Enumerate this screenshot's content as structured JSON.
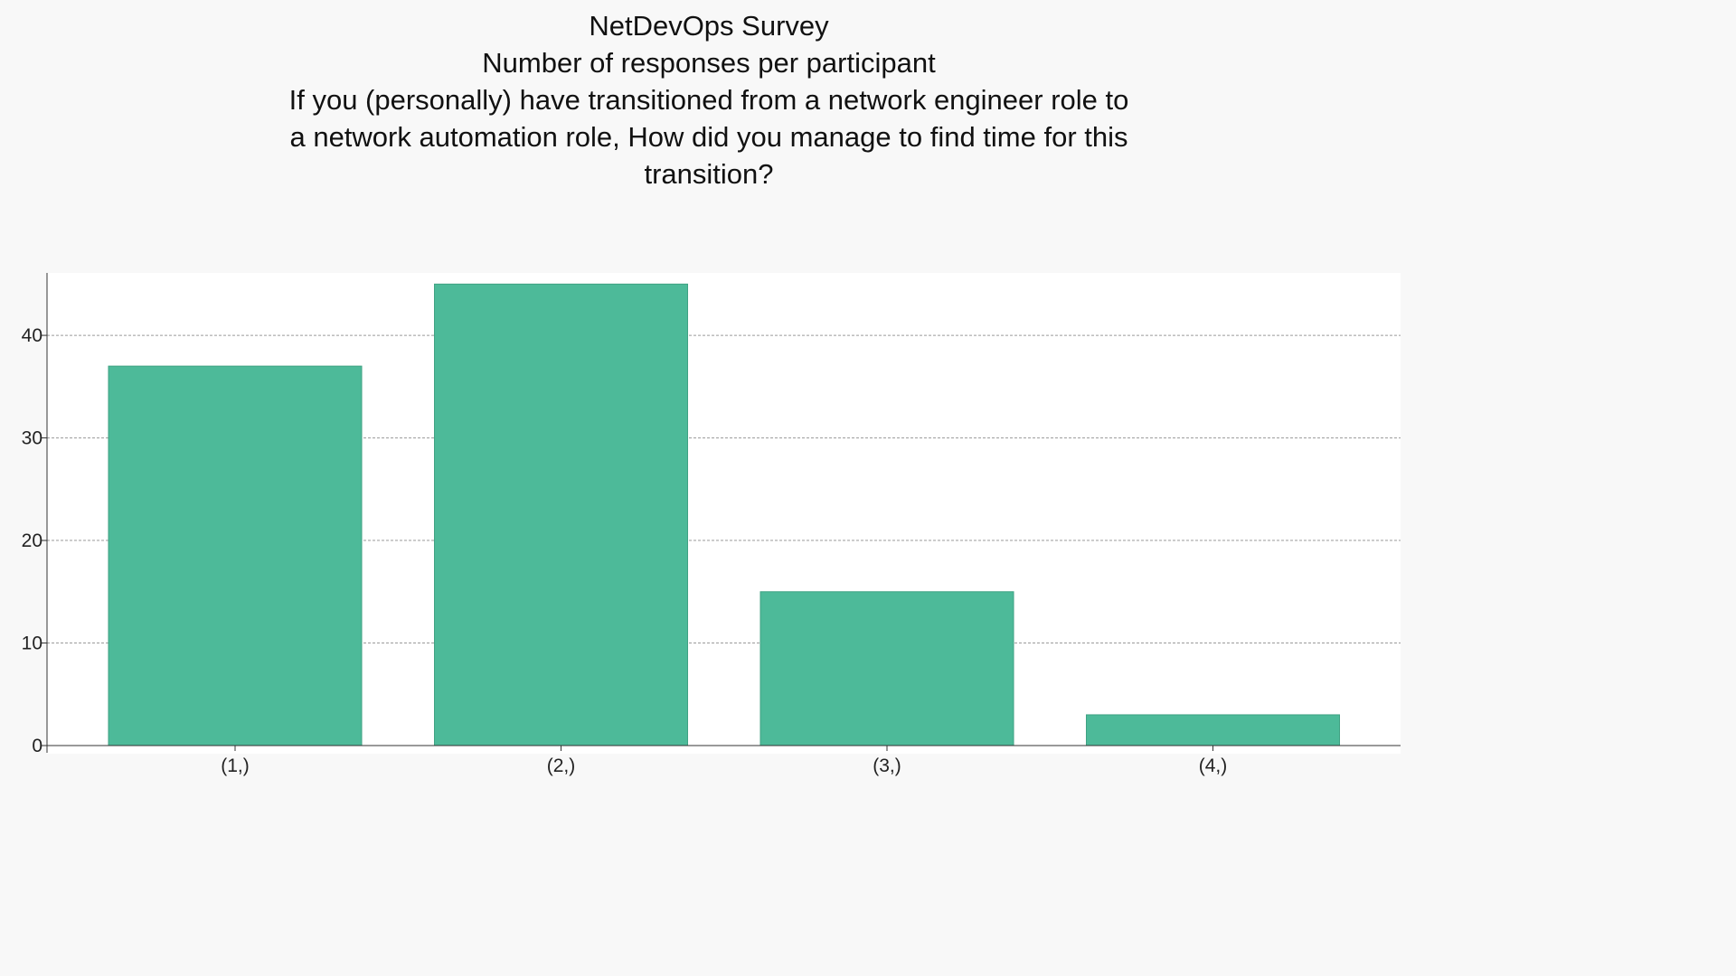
{
  "chart_data": {
    "type": "bar",
    "title": "NetDevOps Survey",
    "subtitle": "Number of responses per participant",
    "question_lines": [
      "If you (personally) have transitioned from a network engineer role to",
      "a network automation role, How did you manage to find time for this",
      "transition?"
    ],
    "categories": [
      "(1,)",
      "(2,)",
      "(3,)",
      "(4,)"
    ],
    "values": [
      37,
      45,
      15,
      3
    ],
    "xlabel": "",
    "ylabel": "",
    "ylim": [
      0,
      46
    ],
    "yticks": [
      0,
      10,
      20,
      30,
      40
    ],
    "grid": true,
    "legend": "none",
    "bar_color": "#4dba99"
  }
}
